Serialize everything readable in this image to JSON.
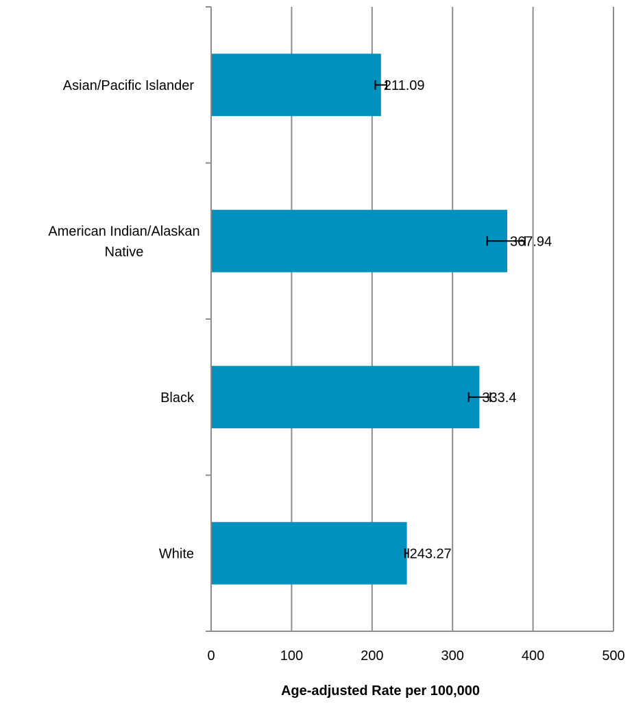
{
  "chart_data": {
    "type": "bar",
    "orientation": "horizontal",
    "categories": [
      [
        "Asian/Pacific Islander"
      ],
      [
        "American Indian/Alaskan",
        "Native"
      ],
      [
        "Black"
      ],
      [
        "White"
      ]
    ],
    "series": [
      {
        "values": [
          211.09,
          367.94,
          333.4,
          243.27
        ],
        "error_low": [
          204,
          343,
          320,
          241
        ],
        "error_high": [
          218,
          390,
          347,
          245
        ],
        "data_labels": [
          "211.09",
          "367.94",
          "333.4",
          "243.27"
        ],
        "color": "#0091be"
      }
    ],
    "x_ticks": [
      "0",
      "100",
      "200",
      "300",
      "400",
      "500"
    ],
    "xlim": [
      0,
      500
    ],
    "xlabel": "Age-adjusted Rate per 100,000",
    "title": "",
    "grid": "vertical",
    "legend": "none"
  }
}
